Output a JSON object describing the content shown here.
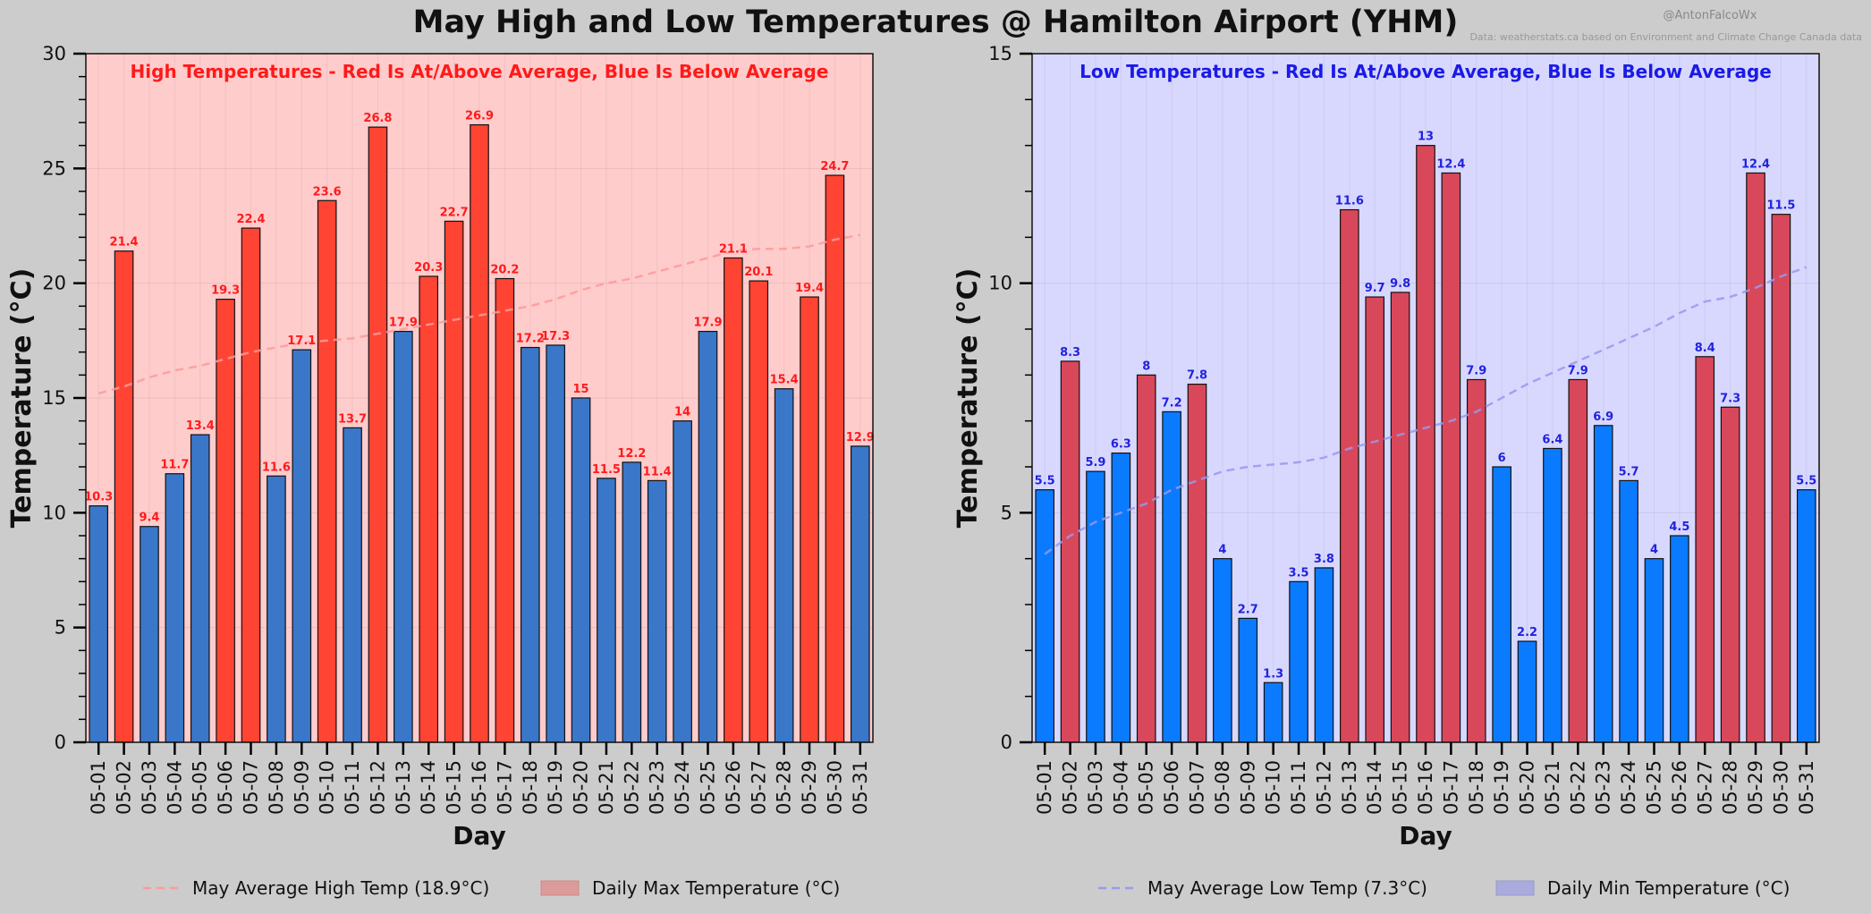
{
  "title": "May High and Low Temperatures @ Hamilton Airport (YHM)",
  "credit": "@AntonFalcoWx",
  "source": "Data: weatherstats.ca based on Environment and Climate Change Canada data",
  "colors": {
    "figure_bg": "#cccccc",
    "red_bar": "#ff4433",
    "blue_bar": "#3a77c9",
    "red_bar_low": "#d9485a",
    "blue_bar_low": "#0a7bff",
    "high_panel_bg": "#ffcccc",
    "low_panel_bg": "#d8d8ff",
    "high_label": "#ff1a1a",
    "low_label": "#2222dd",
    "high_avg_line": "#ff9999",
    "low_avg_line": "#9999ee"
  },
  "chart_data": [
    {
      "type": "bar",
      "subtitle": "High Temperatures - Red Is At/Above Average, Blue Is Below Average",
      "xlabel": "Day",
      "ylabel": "Temperature (°C)",
      "ylim": [
        0,
        30
      ],
      "yticks": [
        0,
        5,
        10,
        15,
        20,
        25,
        30
      ],
      "categories": [
        "05-01",
        "05-02",
        "05-03",
        "05-04",
        "05-05",
        "05-06",
        "05-07",
        "05-08",
        "05-09",
        "05-10",
        "05-11",
        "05-12",
        "05-13",
        "05-14",
        "05-15",
        "05-16",
        "05-17",
        "05-18",
        "05-19",
        "05-20",
        "05-21",
        "05-22",
        "05-23",
        "05-24",
        "05-25",
        "05-26",
        "05-27",
        "05-28",
        "05-29",
        "05-30",
        "05-31"
      ],
      "values": [
        10.3,
        21.4,
        9.4,
        11.7,
        13.4,
        19.3,
        22.4,
        11.6,
        17.1,
        23.6,
        13.7,
        26.8,
        17.9,
        20.3,
        22.7,
        26.9,
        20.2,
        17.2,
        17.3,
        15,
        11.5,
        12.2,
        11.4,
        14,
        17.9,
        21.1,
        20.1,
        15.4,
        19.4,
        24.7,
        12.9
      ],
      "value_labels": [
        "10.3",
        "21.4",
        "9.4",
        "11.7",
        "13.4",
        "19.3",
        "22.4",
        "11.6",
        "17.1",
        "23.6",
        "13.7",
        "26.8",
        "17.9",
        "20.3",
        "22.7",
        "26.9",
        "20.2",
        "17.2",
        "17.3",
        "15",
        "11.5",
        "12.2",
        "11.4",
        "14",
        "17.9",
        "21.1",
        "20.1",
        "15.4",
        "19.4",
        "24.7",
        "12.9"
      ],
      "above_average": [
        false,
        true,
        false,
        false,
        false,
        true,
        true,
        false,
        false,
        true,
        false,
        true,
        false,
        true,
        true,
        true,
        true,
        false,
        false,
        false,
        false,
        false,
        false,
        false,
        false,
        true,
        true,
        false,
        true,
        true,
        false
      ],
      "daily_average": [
        15.2,
        15.5,
        15.9,
        16.2,
        16.4,
        16.7,
        17.0,
        17.2,
        17.4,
        17.5,
        17.6,
        17.8,
        18.0,
        18.2,
        18.4,
        18.6,
        18.8,
        19.0,
        19.3,
        19.7,
        20.0,
        20.2,
        20.5,
        20.8,
        21.1,
        21.4,
        21.5,
        21.5,
        21.6,
        21.9,
        22.1
      ],
      "legend": [
        {
          "label": "May Average High Temp (18.9°C)",
          "kind": "line"
        },
        {
          "label": "Daily Max Temperature (°C)",
          "kind": "patch"
        }
      ],
      "legend_position": "bottom-center",
      "grid": true
    },
    {
      "type": "bar",
      "subtitle": "Low Temperatures - Red Is At/Above Average, Blue Is Below Average",
      "xlabel": "Day",
      "ylabel": "Temperature (°C)",
      "ylim": [
        0,
        15
      ],
      "yticks": [
        0,
        5,
        10,
        15
      ],
      "categories": [
        "05-01",
        "05-02",
        "05-03",
        "05-04",
        "05-05",
        "05-06",
        "05-07",
        "05-08",
        "05-09",
        "05-10",
        "05-11",
        "05-12",
        "05-13",
        "05-14",
        "05-15",
        "05-16",
        "05-17",
        "05-18",
        "05-19",
        "05-20",
        "05-21",
        "05-22",
        "05-23",
        "05-24",
        "05-25",
        "05-26",
        "05-27",
        "05-28",
        "05-29",
        "05-30",
        "05-31"
      ],
      "values": [
        5.5,
        8.3,
        5.9,
        6.3,
        8,
        7.2,
        7.8,
        4,
        2.7,
        1.3,
        3.5,
        3.8,
        11.6,
        9.7,
        9.8,
        13,
        12.4,
        7.9,
        6,
        2.2,
        6.4,
        7.9,
        6.9,
        5.7,
        4,
        4.5,
        8.4,
        7.3,
        12.4,
        11.5,
        5.5
      ],
      "value_labels": [
        "5.5",
        "8.3",
        "5.9",
        "6.3",
        "8",
        "7.2",
        "7.8",
        "4",
        "2.7",
        "1.3",
        "3.5",
        "3.8",
        "11.6",
        "9.7",
        "9.8",
        "13",
        "12.4",
        "7.9",
        "6",
        "2.2",
        "6.4",
        "7.9",
        "6.9",
        "5.7",
        "4",
        "4.5",
        "8.4",
        "7.3",
        "12.4",
        "11.5",
        "5.5"
      ],
      "above_average": [
        false,
        true,
        false,
        false,
        true,
        false,
        true,
        false,
        false,
        false,
        false,
        false,
        true,
        true,
        true,
        true,
        true,
        true,
        false,
        false,
        false,
        true,
        false,
        false,
        false,
        false,
        true,
        true,
        true,
        true,
        false
      ],
      "daily_average": [
        4.1,
        4.5,
        4.8,
        5.0,
        5.2,
        5.5,
        5.7,
        5.9,
        6.0,
        6.05,
        6.1,
        6.2,
        6.4,
        6.55,
        6.7,
        6.85,
        7.0,
        7.2,
        7.5,
        7.8,
        8.05,
        8.3,
        8.55,
        8.8,
        9.05,
        9.35,
        9.6,
        9.7,
        9.9,
        10.15,
        10.35
      ],
      "legend": [
        {
          "label": "May Average Low Temp (7.3°C)",
          "kind": "line"
        },
        {
          "label": "Daily Min Temperature (°C)",
          "kind": "patch"
        }
      ],
      "legend_position": "bottom-center",
      "grid": true
    }
  ]
}
